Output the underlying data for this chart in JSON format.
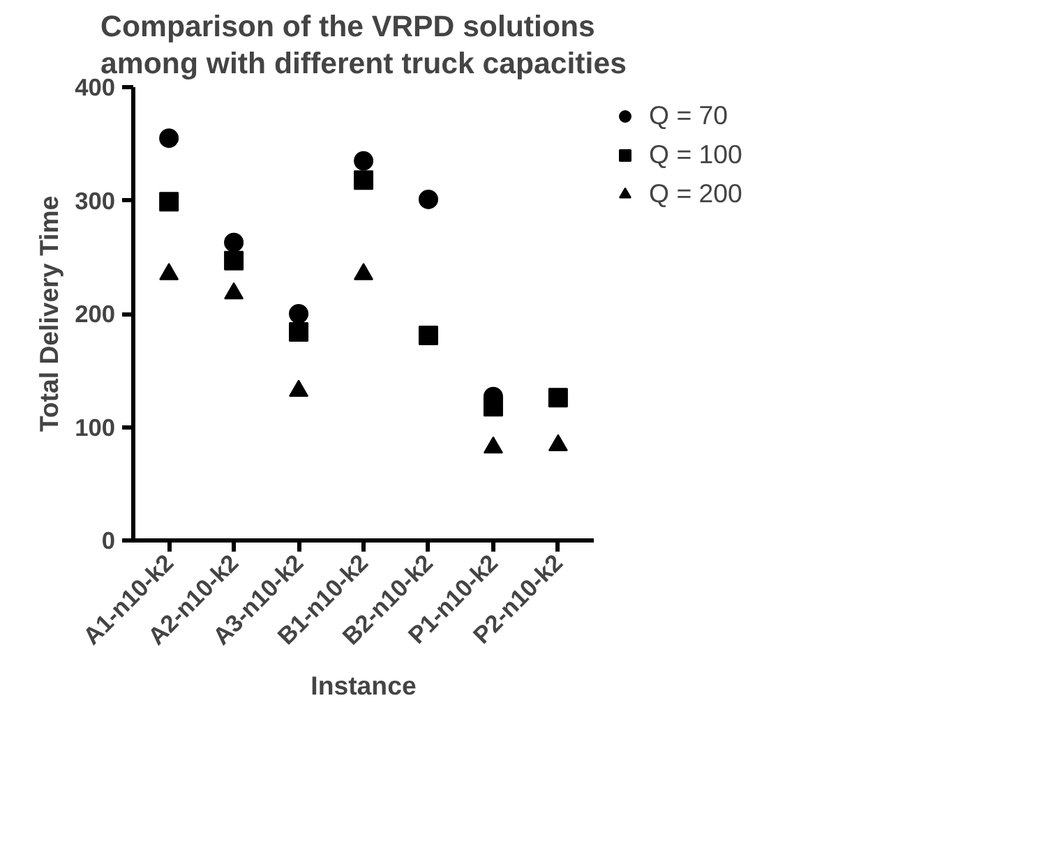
{
  "chart_data": {
    "type": "scatter",
    "title": "Comparison of the VRPD solutions\namong with different truck capacities",
    "xlabel": "Instance",
    "ylabel": "Total Delivery Time",
    "categories": [
      "A1-n10-k2",
      "A2-n10-k2",
      "A3-n10-k2",
      "B1-n10-k2",
      "B2-n10-k2",
      "P1-n10-k2",
      "P2-n10-k2"
    ],
    "ylim": [
      0,
      400
    ],
    "yticks": [
      0,
      100,
      200,
      300,
      400
    ],
    "grid": false,
    "legend": "top right",
    "series": [
      {
        "name": "Q = 70",
        "color": "#000000",
        "marker": "circle",
        "values": [
          355,
          263,
          200,
          335,
          301,
          127,
          null
        ]
      },
      {
        "name": "Q = 100",
        "color": "#000000",
        "marker": "square",
        "values": [
          299,
          247,
          184,
          318,
          181,
          118,
          126
        ]
      },
      {
        "name": "Q = 200",
        "color": "#000000",
        "marker": "triangle",
        "values": [
          235,
          218,
          132,
          235,
          null,
          82,
          84
        ]
      }
    ]
  }
}
